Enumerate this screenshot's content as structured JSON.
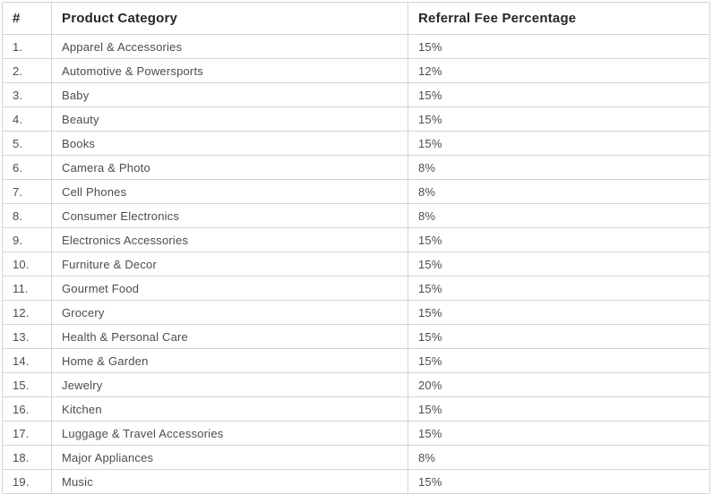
{
  "colors": {
    "background": "#ffffff",
    "border": "#d4d4d4",
    "header_text": "#262626",
    "body_text": "#4c4c4c"
  },
  "table": {
    "columns": [
      {
        "key": "index",
        "label": "#"
      },
      {
        "key": "category",
        "label": "Product Category"
      },
      {
        "key": "fee",
        "label": "Referral Fee Percentage"
      }
    ],
    "rows": [
      {
        "index": "1.",
        "category": "Apparel & Accessories",
        "fee": "15%"
      },
      {
        "index": "2.",
        "category": "Automotive & Powersports",
        "fee": "12%"
      },
      {
        "index": "3.",
        "category": "Baby",
        "fee": "15%"
      },
      {
        "index": "4.",
        "category": "Beauty",
        "fee": "15%"
      },
      {
        "index": "5.",
        "category": "Books",
        "fee": "15%"
      },
      {
        "index": "6.",
        "category": "Camera & Photo",
        "fee": "8%"
      },
      {
        "index": "7.",
        "category": "Cell Phones",
        "fee": "8%"
      },
      {
        "index": "8.",
        "category": "Consumer Electronics",
        "fee": "8%"
      },
      {
        "index": "9.",
        "category": "Electronics Accessories",
        "fee": "15%"
      },
      {
        "index": "10.",
        "category": "Furniture & Decor",
        "fee": "15%"
      },
      {
        "index": "11.",
        "category": "Gourmet Food",
        "fee": "15%"
      },
      {
        "index": "12.",
        "category": "Grocery",
        "fee": "15%"
      },
      {
        "index": "13.",
        "category": "Health & Personal Care",
        "fee": "15%"
      },
      {
        "index": "14.",
        "category": "Home & Garden",
        "fee": "15%"
      },
      {
        "index": "15.",
        "category": "Jewelry",
        "fee": "20%"
      },
      {
        "index": "16.",
        "category": "Kitchen",
        "fee": "15%"
      },
      {
        "index": "17.",
        "category": "Luggage & Travel Accessories",
        "fee": "15%"
      },
      {
        "index": "18.",
        "category": "Major Appliances",
        "fee": "8%"
      },
      {
        "index": "19.",
        "category": "Music",
        "fee": "15%"
      }
    ]
  }
}
